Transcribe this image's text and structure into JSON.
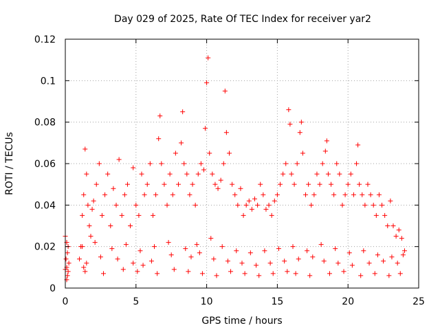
{
  "chart_data": {
    "type": "scatter",
    "title": "Day 029 of 2025, Rate Of TEC Index for receiver yar2",
    "xlabel": "GPS time / hours",
    "ylabel": "ROTI / TECUs",
    "xlim": [
      0,
      25
    ],
    "ylim": [
      0,
      0.12
    ],
    "xticks": [
      "0",
      "5",
      "10",
      "15",
      "20",
      "25"
    ],
    "yticks": [
      "0",
      "0.02",
      "0.04",
      "0.06",
      "0.08",
      "0.1",
      "0.12"
    ],
    "grid": true,
    "marker": "+",
    "color": "#ff0000",
    "series": [
      {
        "name": "",
        "x": [
          0.0,
          0.05,
          0.1,
          0.15,
          0.2,
          0.25,
          0.1,
          0.15,
          0.0,
          0.1,
          0.2,
          1.0,
          1.1,
          1.2,
          1.3,
          1.4,
          1.5,
          1.6,
          1.7,
          1.8,
          1.9,
          2.0,
          2.2,
          2.4,
          2.6,
          2.8,
          3.0,
          3.2,
          3.4,
          3.6,
          3.8,
          4.0,
          4.2,
          4.4,
          4.6,
          4.8,
          5.0,
          5.2,
          5.4,
          5.6,
          5.8,
          6.0,
          6.2,
          6.4,
          6.6,
          6.7,
          6.8,
          7.0,
          7.2,
          7.4,
          7.6,
          7.8,
          8.0,
          8.2,
          8.3,
          8.4,
          8.6,
          8.8,
          9.0,
          9.2,
          9.4,
          9.6,
          9.8,
          9.9,
          10.0,
          10.1,
          10.2,
          10.4,
          10.6,
          10.8,
          11.0,
          11.2,
          11.3,
          11.4,
          11.6,
          11.8,
          12.0,
          12.2,
          12.4,
          12.6,
          12.8,
          13.0,
          13.2,
          13.4,
          13.6,
          13.8,
          14.0,
          14.2,
          14.4,
          14.6,
          14.8,
          15.0,
          15.2,
          15.4,
          15.6,
          15.8,
          15.9,
          16.0,
          16.2,
          16.4,
          16.6,
          16.7,
          16.8,
          17.0,
          17.2,
          17.4,
          17.6,
          17.8,
          18.0,
          18.2,
          18.4,
          18.5,
          18.6,
          18.8,
          19.0,
          19.2,
          19.4,
          19.6,
          19.8,
          20.0,
          20.2,
          20.4,
          20.6,
          20.7,
          20.8,
          21.0,
          21.2,
          21.4,
          21.6,
          21.8,
          22.0,
          22.2,
          22.4,
          22.6,
          22.8,
          23.0,
          23.2,
          23.4,
          23.6,
          23.8,
          24.0,
          1.3,
          1.5,
          2.5,
          3.7,
          4.8,
          5.5,
          6.1,
          7.5,
          8.9,
          9.5,
          10.5,
          11.5,
          12.5,
          13.5,
          14.5,
          15.5,
          16.5,
          17.5,
          18.3,
          19.3,
          20.3,
          21.5,
          22.5,
          23.5,
          1.2,
          2.1,
          3.3,
          4.3,
          5.3,
          6.3,
          7.3,
          8.5,
          9.3,
          10.3,
          11.1,
          12.1,
          13.1,
          14.1,
          15.1,
          16.1,
          17.1,
          18.1,
          19.1,
          20.1,
          21.1,
          22.1,
          23.1,
          23.9,
          1.4,
          2.7,
          4.1,
          5.1,
          6.5,
          7.7,
          8.7,
          9.7,
          10.7,
          11.7,
          12.7,
          13.7,
          14.7,
          15.7,
          16.3,
          17.3,
          18.7,
          19.7,
          20.9,
          21.9,
          22.9,
          23.7
        ],
        "y": [
          0.025,
          0.014,
          0.01,
          0.006,
          0.02,
          0.012,
          0.004,
          0.017,
          0.009,
          0.022,
          0.008,
          0.014,
          0.02,
          0.035,
          0.045,
          0.067,
          0.055,
          0.04,
          0.03,
          0.025,
          0.038,
          0.042,
          0.05,
          0.06,
          0.035,
          0.045,
          0.055,
          0.03,
          0.048,
          0.04,
          0.062,
          0.035,
          0.045,
          0.05,
          0.03,
          0.058,
          0.04,
          0.035,
          0.055,
          0.045,
          0.05,
          0.06,
          0.035,
          0.045,
          0.072,
          0.083,
          0.06,
          0.05,
          0.04,
          0.055,
          0.045,
          0.065,
          0.05,
          0.07,
          0.085,
          0.06,
          0.055,
          0.045,
          0.05,
          0.04,
          0.055,
          0.06,
          0.057,
          0.077,
          0.099,
          0.111,
          0.065,
          0.055,
          0.05,
          0.048,
          0.052,
          0.06,
          0.095,
          0.075,
          0.065,
          0.05,
          0.045,
          0.04,
          0.048,
          0.035,
          0.04,
          0.042,
          0.038,
          0.043,
          0.04,
          0.05,
          0.045,
          0.038,
          0.04,
          0.035,
          0.042,
          0.045,
          0.05,
          0.055,
          0.06,
          0.086,
          0.079,
          0.055,
          0.05,
          0.06,
          0.075,
          0.08,
          0.065,
          0.045,
          0.05,
          0.04,
          0.045,
          0.055,
          0.05,
          0.06,
          0.066,
          0.071,
          0.055,
          0.05,
          0.045,
          0.06,
          0.055,
          0.04,
          0.045,
          0.05,
          0.055,
          0.045,
          0.06,
          0.069,
          0.05,
          0.045,
          0.04,
          0.05,
          0.045,
          0.04,
          0.035,
          0.045,
          0.04,
          0.035,
          0.03,
          0.042,
          0.03,
          0.025,
          0.028,
          0.024,
          0.018,
          0.01,
          0.012,
          0.015,
          0.014,
          0.012,
          0.011,
          0.013,
          0.016,
          0.015,
          0.017,
          0.014,
          0.013,
          0.012,
          0.011,
          0.012,
          0.013,
          0.014,
          0.015,
          0.013,
          0.012,
          0.011,
          0.012,
          0.013,
          0.012,
          0.02,
          0.022,
          0.019,
          0.021,
          0.018,
          0.02,
          0.022,
          0.019,
          0.021,
          0.024,
          0.02,
          0.018,
          0.017,
          0.018,
          0.019,
          0.02,
          0.018,
          0.021,
          0.019,
          0.017,
          0.018,
          0.016,
          0.015,
          0.016,
          0.008,
          0.007,
          0.009,
          0.008,
          0.007,
          0.009,
          0.008,
          0.007,
          0.006,
          0.008,
          0.007,
          0.006,
          0.007,
          0.008,
          0.007,
          0.006,
          0.007,
          0.008,
          0.006,
          0.007,
          0.006,
          0.007
        ]
      }
    ]
  }
}
